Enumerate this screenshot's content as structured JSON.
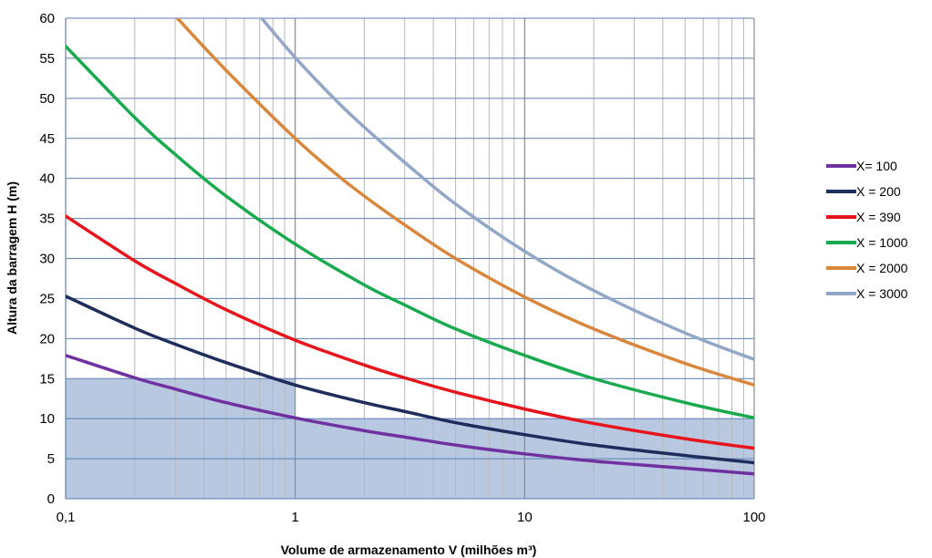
{
  "chart_data": {
    "type": "line",
    "xlabel": "Volume de armazenamento V (milhões m³)",
    "ylabel": "Altura da barragem H (m)",
    "x_scale": "log",
    "xlim": [
      0.1,
      100
    ],
    "ylim": [
      0,
      60
    ],
    "x_ticks": [
      "0,1",
      "1",
      "10",
      "100"
    ],
    "y_ticks": [
      0,
      5,
      10,
      15,
      20,
      25,
      30,
      35,
      40,
      45,
      50,
      55,
      60
    ],
    "grid": true,
    "legend_position": "right",
    "shaded_regions": [
      {
        "x": [
          0.1,
          1
        ],
        "y": [
          0,
          15
        ],
        "color": "#9fb5d6"
      },
      {
        "x": [
          1,
          100
        ],
        "y": [
          0,
          10
        ],
        "color": "#9fb5d6"
      }
    ],
    "series": [
      {
        "name": "X= 100",
        "color": "#7030a0",
        "x": [
          0.1,
          0.2,
          0.3,
          0.5,
          1,
          2,
          3,
          5,
          10,
          20,
          50,
          100
        ],
        "y": [
          17.9,
          15.1,
          13.7,
          12.0,
          10.1,
          8.5,
          7.7,
          6.7,
          5.6,
          4.7,
          3.8,
          3.1
        ]
      },
      {
        "name": "X = 200",
        "color": "#1f2d5c",
        "x": [
          0.1,
          0.2,
          0.3,
          0.5,
          1,
          2,
          3,
          5,
          10,
          20,
          50,
          100
        ],
        "y": [
          25.3,
          21.3,
          19.3,
          17.0,
          14.2,
          12.0,
          10.9,
          9.5,
          8.0,
          6.7,
          5.4,
          4.5
        ]
      },
      {
        "name": "X = 390",
        "color": "#e8141c",
        "x": [
          0.1,
          0.2,
          0.3,
          0.5,
          1,
          2,
          3,
          5,
          10,
          20,
          50,
          100
        ],
        "y": [
          35.3,
          29.7,
          26.9,
          23.6,
          19.8,
          16.7,
          15.1,
          13.3,
          11.2,
          9.4,
          7.5,
          6.3
        ]
      },
      {
        "name": "X = 1000",
        "color": "#1aaa4e",
        "x": [
          0.1,
          0.2,
          0.3,
          0.5,
          1,
          2,
          3,
          5,
          10,
          20,
          50,
          100
        ],
        "y": [
          56.5,
          47.6,
          43.0,
          37.8,
          31.8,
          26.7,
          24.2,
          21.2,
          17.9,
          15.0,
          12.0,
          10.1
        ]
      },
      {
        "name": "X = 2000",
        "color": "#d9873d",
        "x": [
          0.3,
          0.5,
          1,
          1.5,
          2,
          3,
          5,
          10,
          20,
          50,
          100
        ],
        "y": [
          60.3,
          53.5,
          45.0,
          40.6,
          37.8,
          34.2,
          30.0,
          25.2,
          21.2,
          16.9,
          14.2
        ]
      },
      {
        "name": "X = 3000",
        "color": "#92a7c8",
        "x": [
          0.7,
          1,
          1.5,
          2,
          3,
          5,
          10,
          20,
          50,
          100
        ],
        "y": [
          60.3,
          55.1,
          49.8,
          46.4,
          42.0,
          36.8,
          30.9,
          26.0,
          20.7,
          17.4
        ]
      }
    ]
  }
}
